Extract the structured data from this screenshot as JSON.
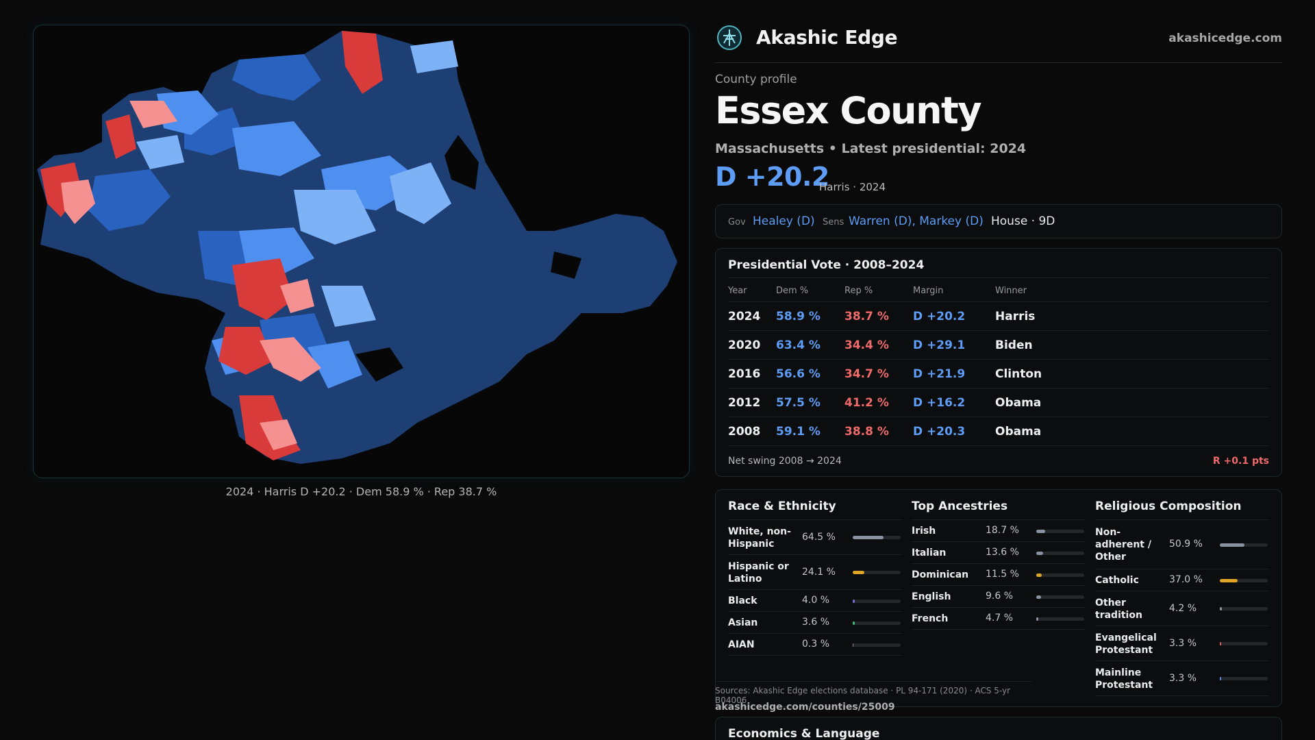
{
  "brand": {
    "name": "Akashic Edge",
    "url": "akashicedge.com"
  },
  "profile": {
    "kicker": "County profile",
    "title": "Essex County",
    "subtitle": "Massachusetts • Latest presidential: 2024",
    "margin": "D +20.2",
    "margin_note": "Harris · 2024"
  },
  "map": {
    "caption": "2024 · Harris D +20.2 · Dem 58.9 % · Rep 38.7 %",
    "colors": {
      "strong_dem": "#1e3f74",
      "dem": "#2a62c0",
      "lean_dem": "#4f8ff0",
      "tilt_dem": "#7eb2f7",
      "lean_rep": "#f59191",
      "rep": "#d93a3a"
    }
  },
  "officials": {
    "gov_label": "Gov",
    "gov": "Healey (D)",
    "sens_label": "Sens",
    "sens": "Warren (D), Markey (D)",
    "house": "House · 9D"
  },
  "presidential": {
    "title": "Presidential Vote · 2008–2024",
    "headers": {
      "year": "Year",
      "dem": "Dem %",
      "rep": "Rep %",
      "margin": "Margin",
      "winner": "Winner"
    },
    "rows": [
      {
        "year": "2024",
        "dem": "58.9 %",
        "rep": "38.7 %",
        "margin": "D +20.2",
        "winner": "Harris"
      },
      {
        "year": "2020",
        "dem": "63.4 %",
        "rep": "34.4 %",
        "margin": "D +29.1",
        "winner": "Biden"
      },
      {
        "year": "2016",
        "dem": "56.6 %",
        "rep": "34.7 %",
        "margin": "D +21.9",
        "winner": "Clinton"
      },
      {
        "year": "2012",
        "dem": "57.5 %",
        "rep": "41.2 %",
        "margin": "D +16.2",
        "winner": "Obama"
      },
      {
        "year": "2008",
        "dem": "59.1 %",
        "rep": "38.8 %",
        "margin": "D +20.3",
        "winner": "Obama"
      }
    ],
    "swing_label": "Net swing 2008 → 2024",
    "swing_value": "R +0.1 pts"
  },
  "demographics": {
    "race": {
      "title": "Race & Ethnicity",
      "rows": [
        {
          "label": "White, non-Hispanic",
          "value": "64.5 %",
          "pct": 64.5,
          "color": "#8b93a3"
        },
        {
          "label": "Hispanic or Latino",
          "value": "24.1 %",
          "pct": 24.1,
          "color": "#e0a526"
        },
        {
          "label": "Black",
          "value": "4.0 %",
          "pct": 4.0,
          "color": "#7a6ad8"
        },
        {
          "label": "Asian",
          "value": "3.6 %",
          "pct": 3.6,
          "color": "#3cb37a"
        },
        {
          "label": "AIAN",
          "value": "0.3 %",
          "pct": 0.3,
          "color": "#8b93a3"
        }
      ]
    },
    "ancestry": {
      "title": "Top Ancestries",
      "rows": [
        {
          "label": "Irish",
          "value": "18.7 %",
          "pct": 18.7,
          "color": "#8b93a3"
        },
        {
          "label": "Italian",
          "value": "13.6 %",
          "pct": 13.6,
          "color": "#8b93a3"
        },
        {
          "label": "Dominican",
          "value": "11.5 %",
          "pct": 11.5,
          "color": "#e0a526"
        },
        {
          "label": "English",
          "value": "9.6 %",
          "pct": 9.6,
          "color": "#8b93a3"
        },
        {
          "label": "French",
          "value": "4.7 %",
          "pct": 4.7,
          "color": "#8b93a3"
        }
      ]
    },
    "religion": {
      "title": "Religious Composition",
      "rows": [
        {
          "label": "Non-adherent / Other",
          "value": "50.9 %",
          "pct": 50.9,
          "color": "#8b93a3"
        },
        {
          "label": "Catholic",
          "value": "37.0 %",
          "pct": 37.0,
          "color": "#e0a526"
        },
        {
          "label": "Other tradition",
          "value": "4.2 %",
          "pct": 4.2,
          "color": "#8b93a3"
        },
        {
          "label": "Evangelical Protestant",
          "value": "3.3 %",
          "pct": 3.3,
          "color": "#e05a6a"
        },
        {
          "label": "Mainline Protestant",
          "value": "3.3 %",
          "pct": 3.3,
          "color": "#4f8ff0"
        }
      ]
    }
  },
  "sources": "Sources: Akashic Edge elections database · PL 94-171 (2020) · ACS 5-yr B04006",
  "source_url": "akashicedge.com/counties/25009",
  "economics": {
    "title": "Economics & Language"
  }
}
